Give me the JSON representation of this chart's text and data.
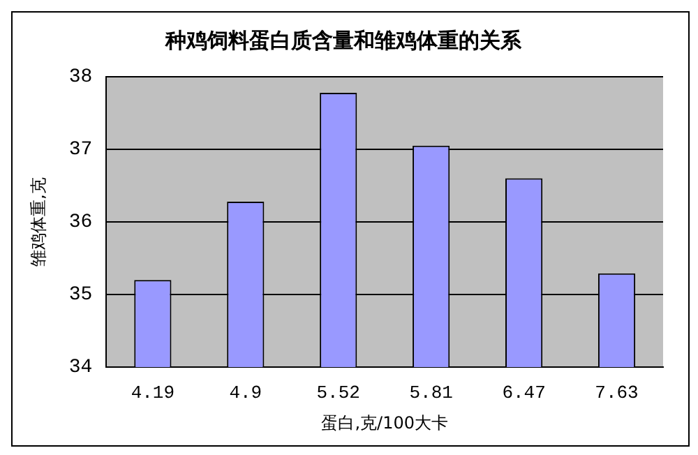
{
  "chart_data": {
    "type": "bar",
    "title": "种鸡饲料蛋白质含量和雏鸡体重的关系",
    "xlabel": "蛋白,克/100大卡",
    "ylabel": "雏鸡体重,克",
    "categories": [
      "4.19",
      "4.9",
      "5.52",
      "5.81",
      "6.47",
      "7.63"
    ],
    "values": [
      35.2,
      36.28,
      37.78,
      37.05,
      36.6,
      35.29
    ],
    "color": "#9999ff",
    "ylim": [
      34,
      38
    ],
    "yticks": [
      34,
      35,
      36,
      37,
      38
    ],
    "grid": "y",
    "legend": false
  }
}
